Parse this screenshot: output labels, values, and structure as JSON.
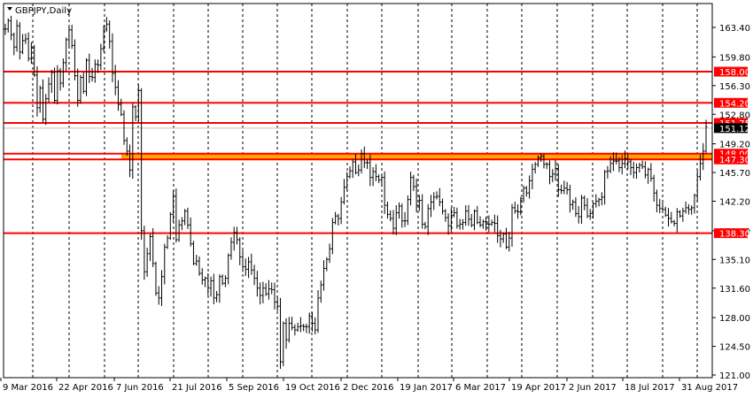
{
  "header": {
    "symbol_label": "GBPJPY,Daily",
    "menu_icon": "triangle-down-icon"
  },
  "colors": {
    "background": "#ffffff",
    "candle": "#000000",
    "grid": "#000000",
    "level_line": "#ff0000",
    "zone_fill": "#ffa500",
    "price_marker": "#000000"
  },
  "chart_data": {
    "type": "candlestick",
    "symbol": "GBPJPY",
    "timeframe": "Daily",
    "ylim": [
      121.0,
      165.2
    ],
    "y_ticks": [
      "163.40",
      "159.80",
      "156.30",
      "152.80",
      "149.20",
      "145.70",
      "142.20",
      "138.60",
      "135.10",
      "131.60",
      "128.00",
      "124.50",
      "121.00"
    ],
    "x_tick_labels": [
      "9 Mar 2016",
      "22 Apr 2016",
      "7 Jun 2016",
      "21 Jul 2016",
      "5 Sep 2016",
      "19 Oct 2016",
      "2 Dec 2016",
      "19 Jan 2017",
      "6 Mar 2017",
      "19 Apr 2017",
      "2 Jun 2017",
      "18 Jul 2017",
      "31 Aug 2017"
    ],
    "current_price": {
      "value": 151.12,
      "label": "151.12"
    },
    "levels": [
      {
        "value": 158.0,
        "label": "158.00"
      },
      {
        "value": 154.2,
        "label": "154.20"
      },
      {
        "value": 151.75,
        "label": "151.75"
      },
      {
        "value": 148.0,
        "label": "148.00"
      },
      {
        "value": 147.3,
        "label": "147.30"
      },
      {
        "value": 138.3,
        "label": "138.30"
      }
    ],
    "zone": {
      "from": 147.3,
      "to": 148.0
    },
    "closes": [
      163.2,
      164.2,
      162.5,
      161.0,
      163.6,
      160.4,
      161.8,
      162.0,
      159.6,
      160.9,
      157.6,
      153.6,
      156.0,
      152.2,
      154.7,
      156.5,
      157.9,
      154.5,
      158.1,
      156.6,
      159.1,
      161.9,
      163.1,
      161.2,
      157.5,
      154.5,
      157.3,
      155.6,
      159.4,
      157.4,
      157.3,
      158.9,
      158.8,
      160.8,
      163.2,
      163.8,
      161.7,
      157.8,
      156.1,
      154.0,
      152.8,
      149.6,
      148.3,
      146.0,
      153.7,
      152.5,
      155.7,
      138.6,
      133.6,
      135.8,
      137.9,
      134.6,
      131.0,
      130.4,
      133.0,
      136.6,
      137.7,
      140.6,
      142.8,
      137.5,
      139.3,
      139.8,
      141.0,
      139.3,
      137.0,
      134.6,
      134.9,
      133.4,
      132.6,
      132.8,
      131.6,
      132.5,
      130.4,
      130.8,
      133.0,
      132.2,
      132.8,
      135.6,
      137.2,
      138.4,
      137.5,
      135.4,
      134.2,
      133.9,
      134.8,
      133.8,
      132.8,
      131.6,
      130.7,
      131.6,
      130.9,
      131.5,
      131.4,
      129.9,
      129.4,
      122.6,
      127.3,
      125.3,
      127.3,
      126.8,
      126.5,
      126.9,
      127.0,
      126.9,
      126.9,
      128.2,
      127.3,
      126.5,
      130.4,
      132.0,
      134.0,
      135.1,
      136.4,
      139.6,
      140.4,
      140.1,
      142.1,
      143.9,
      145.2,
      145.9,
      147.0,
      145.7,
      146.0,
      148.0,
      146.9,
      146.9,
      145.1,
      145.8,
      145.2,
      144.8,
      145.1,
      141.7,
      140.6,
      140.1,
      138.9,
      140.8,
      141.6,
      139.8,
      139.8,
      142.4,
      145.1,
      144.0,
      141.7,
      142.3,
      139.4,
      139.1,
      141.3,
      142.1,
      142.7,
      142.8,
      142.1,
      141.0,
      140.2,
      139.2,
      140.5,
      140.8,
      139.2,
      139.4,
      139.6,
      141.0,
      140.0,
      139.3,
      141.0,
      139.6,
      139.3,
      139.7,
      139.4,
      139.4,
      139.6,
      139.5,
      138.0,
      137.6,
      138.2,
      136.6,
      137.7,
      141.4,
      141.0,
      140.9,
      142.5,
      143.8,
      143.2,
      144.7,
      146.1,
      146.7,
      147.5,
      147.7,
      146.7,
      146.7,
      145.2,
      145.5,
      146.2,
      143.6,
      143.5,
      143.8,
      143.6,
      141.8,
      142.1,
      140.7,
      140.3,
      142.6,
      141.7,
      140.4,
      140.7,
      141.9,
      142.2,
      142.4,
      142.7,
      145.8,
      145.9,
      146.8,
      147.1,
      147.1,
      146.3,
      146.8,
      147.4,
      147.0,
      146.3,
      145.7,
      146.3,
      146.6,
      146.4,
      145.4,
      146.1,
      145.0,
      143.2,
      141.7,
      141.3,
      141.2,
      140.5,
      140.1,
      139.7,
      139.5,
      140.9,
      140.4,
      141.0,
      141.4,
      141.2,
      141.4,
      142.9,
      145.2,
      146.8,
      148.3,
      151.3
    ]
  }
}
